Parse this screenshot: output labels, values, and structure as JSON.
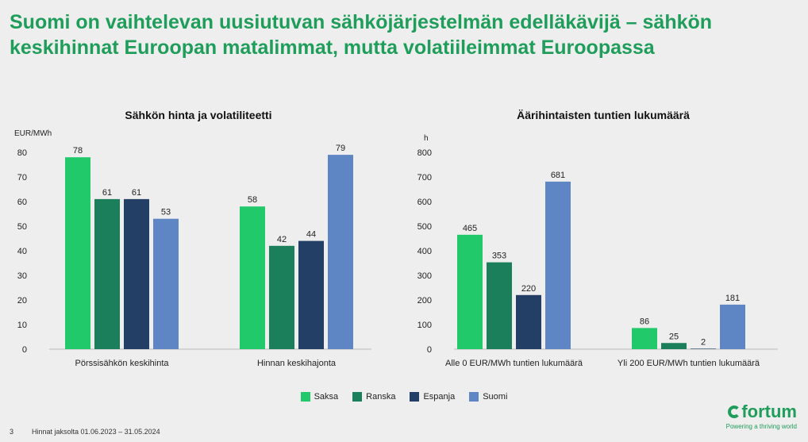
{
  "slide": {
    "title": "Suomi on vaihtelevan uusiutuvan sähköjärjestelmän edelläkävijä – sähkön keskihinnat Euroopan matalimmat, mutta volatiileimmat Euroopassa",
    "page_number": "3",
    "footnote": "Hinnat jaksolta 01.06.2023 – 31.05.2024"
  },
  "legend": [
    {
      "name": "Saksa",
      "color": "#22c96a"
    },
    {
      "name": "Ranska",
      "color": "#1a7f5a"
    },
    {
      "name": "Espanja",
      "color": "#233f66"
    },
    {
      "name": "Suomi",
      "color": "#5f86c4"
    }
  ],
  "logo": {
    "name": "fortum",
    "icon": "fortum-logo-icon",
    "tagline": "Powering a thriving world"
  },
  "chart_data": [
    {
      "type": "bar",
      "title": "Sähkön hinta ja volatiliteetti",
      "ylabel": "EUR/MWh",
      "ylim": [
        0,
        80
      ],
      "yticks": [
        0,
        10,
        20,
        30,
        40,
        50,
        60,
        70,
        80
      ],
      "grid": false,
      "legend_position": "bottom",
      "categories": [
        "Pörssisähkön keskihinta",
        "Hinnan keskihajonta"
      ],
      "series": [
        {
          "name": "Saksa",
          "color": "#22c96a",
          "values": [
            78,
            58
          ]
        },
        {
          "name": "Ranska",
          "color": "#1a7f5a",
          "values": [
            61,
            42
          ]
        },
        {
          "name": "Espanja",
          "color": "#233f66",
          "values": [
            61,
            44
          ]
        },
        {
          "name": "Suomi",
          "color": "#5f86c4",
          "values": [
            53,
            79
          ]
        }
      ]
    },
    {
      "type": "bar",
      "title": "Äärihintaisten tuntien lukumäärä",
      "ylabel": "h",
      "ylim": [
        0,
        800
      ],
      "yticks": [
        0,
        100,
        200,
        300,
        400,
        500,
        600,
        700,
        800
      ],
      "grid": false,
      "legend_position": "bottom",
      "categories": [
        "Alle 0 EUR/MWh tuntien lukumäärä",
        "Yli 200 EUR/MWh tuntien lukumäärä"
      ],
      "series": [
        {
          "name": "Saksa",
          "color": "#22c96a",
          "values": [
            465,
            86
          ]
        },
        {
          "name": "Ranska",
          "color": "#1a7f5a",
          "values": [
            353,
            25
          ]
        },
        {
          "name": "Espanja",
          "color": "#233f66",
          "values": [
            220,
            2
          ]
        },
        {
          "name": "Suomi",
          "color": "#5f86c4",
          "values": [
            681,
            181
          ]
        }
      ]
    }
  ]
}
